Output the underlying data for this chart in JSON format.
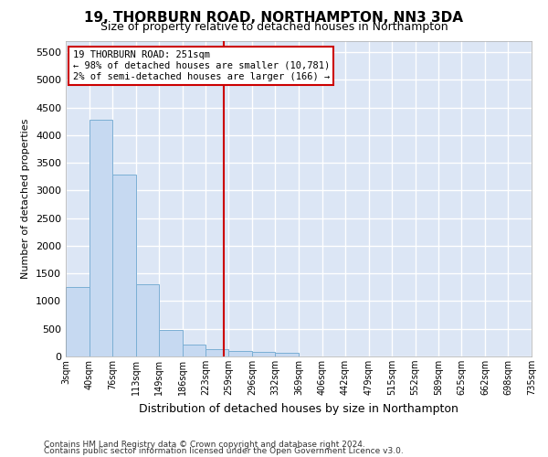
{
  "title": "19, THORBURN ROAD, NORTHAMPTON, NN3 3DA",
  "subtitle": "Size of property relative to detached houses in Northampton",
  "xlabel": "Distribution of detached houses by size in Northampton",
  "ylabel": "Number of detached properties",
  "footnote1": "Contains HM Land Registry data © Crown copyright and database right 2024.",
  "footnote2": "Contains public sector information licensed under the Open Government Licence v3.0.",
  "annotation_title": "19 THORBURN ROAD: 251sqm",
  "annotation_line1": "← 98% of detached houses are smaller (10,781)",
  "annotation_line2": "2% of semi-detached houses are larger (166) →",
  "property_size": 251,
  "bar_edges": [
    3,
    40,
    76,
    113,
    149,
    186,
    223,
    259,
    296,
    332,
    369,
    406,
    442,
    479,
    515,
    552,
    589,
    625,
    662,
    698,
    735
  ],
  "bar_heights": [
    1260,
    4280,
    3280,
    1300,
    480,
    210,
    130,
    100,
    80,
    70,
    0,
    0,
    0,
    0,
    0,
    0,
    0,
    0,
    0,
    0
  ],
  "bar_color": "#c6d9f1",
  "bar_edge_color": "#7bafd4",
  "vline_color": "#cc0000",
  "vline_x": 251,
  "annotation_box_color": "#cc0000",
  "ylim": [
    0,
    5700
  ],
  "yticks": [
    0,
    500,
    1000,
    1500,
    2000,
    2500,
    3000,
    3500,
    4000,
    4500,
    5000,
    5500
  ],
  "xlim": [
    3,
    735
  ],
  "bg_color": "#dce6f5",
  "fig_bg_color": "#ffffff",
  "grid_color": "#ffffff",
  "title_fontsize": 11,
  "subtitle_fontsize": 9,
  "ylabel_fontsize": 8,
  "xlabel_fontsize": 9,
  "tick_fontsize": 7,
  "footnote_fontsize": 6.5
}
